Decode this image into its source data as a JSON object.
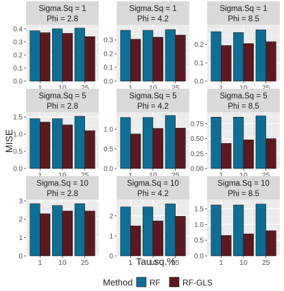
{
  "chart_data": {
    "type": "bar",
    "ylabel": "MISE",
    "xlabel": "Tau.sq.%",
    "categories": [
      "1",
      "10",
      "25"
    ],
    "legend": {
      "title": "Method",
      "position": "bottom",
      "entries": [
        {
          "name": "RF",
          "color": "#0e6e96"
        },
        {
          "name": "RF-GLS",
          "color": "#5b1a20"
        }
      ]
    },
    "panels": [
      {
        "strip1": "Sigma.Sq = 1",
        "strip2": "Phi = 2.8",
        "ylim": [
          0,
          0.42
        ],
        "yticks": [
          "0.0",
          "0.1",
          "0.2",
          "0.3",
          "0.4"
        ],
        "series": [
          {
            "name": "RF",
            "values": [
              0.385,
              0.4,
              0.405
            ]
          },
          {
            "name": "RF-GLS",
            "values": [
              0.37,
              0.365,
              0.34
            ]
          }
        ]
      },
      {
        "strip1": "Sigma.Sq = 1",
        "strip2": "Phi = 4.2",
        "ylim": [
          0,
          0.4
        ],
        "yticks": [
          "0.0",
          "0.1",
          "0.2",
          "0.3"
        ],
        "series": [
          {
            "name": "RF",
            "values": [
              0.37,
              0.37,
              0.375
            ]
          },
          {
            "name": "RF-GLS",
            "values": [
              0.305,
              0.32,
              0.335
            ]
          }
        ]
      },
      {
        "strip1": "Sigma.Sq = 1",
        "strip2": "Phi = 8.5",
        "ylim": [
          0,
          0.3
        ],
        "yticks": [
          "0.0",
          "0.1",
          "0.2"
        ],
        "series": [
          {
            "name": "RF",
            "values": [
              0.27,
              0.265,
              0.28
            ]
          },
          {
            "name": "RF-GLS",
            "values": [
              0.195,
              0.205,
              0.215
            ]
          }
        ]
      },
      {
        "strip1": "Sigma.Sq = 5",
        "strip2": "Phi = 2.8",
        "ylim": [
          0,
          1.6
        ],
        "yticks": [
          "0.0",
          "0.5",
          "1.0",
          "1.5"
        ],
        "series": [
          {
            "name": "RF",
            "values": [
              1.45,
              1.45,
              1.52
            ]
          },
          {
            "name": "RF-GLS",
            "values": [
              1.35,
              1.27,
              1.1
            ]
          }
        ]
      },
      {
        "strip1": "Sigma.Sq = 5",
        "strip2": "Phi = 4.2",
        "ylim": [
          0,
          1.4
        ],
        "yticks": [
          "0.0",
          "0.5",
          "1.0"
        ],
        "series": [
          {
            "name": "RF",
            "values": [
              1.3,
              1.3,
              1.35
            ]
          },
          {
            "name": "RF-GLS",
            "values": [
              0.88,
              1.02,
              1.03
            ]
          }
        ]
      },
      {
        "strip1": "Sigma.Sq = 5",
        "strip2": "Phi = 8.5",
        "ylim": [
          0,
          0.92
        ],
        "yticks": [
          "0.00",
          "0.25",
          "0.50",
          "0.75"
        ],
        "series": [
          {
            "name": "RF",
            "values": [
              0.86,
              0.86,
              0.88
            ]
          },
          {
            "name": "RF-GLS",
            "values": [
              0.42,
              0.48,
              0.5
            ]
          }
        ]
      },
      {
        "strip1": "Sigma.Sq = 10",
        "strip2": "Phi = 2.8",
        "ylim": [
          0,
          3.0
        ],
        "yticks": [
          "0",
          "1",
          "2",
          "3"
        ],
        "series": [
          {
            "name": "RF",
            "values": [
              2.85,
              2.75,
              2.85
            ]
          },
          {
            "name": "RF-GLS",
            "values": [
              2.3,
              2.45,
              2.45
            ]
          }
        ]
      },
      {
        "strip1": "Sigma.Sq = 10",
        "strip2": "Phi = 4.2",
        "ylim": [
          0,
          2.75
        ],
        "yticks": [
          "0",
          "1",
          "2"
        ],
        "series": [
          {
            "name": "RF",
            "values": [
              2.45,
              2.45,
              2.6
            ]
          },
          {
            "name": "RF-GLS",
            "values": [
              1.5,
              1.75,
              1.98
            ]
          }
        ]
      },
      {
        "strip1": "Sigma.Sq = 10",
        "strip2": "Phi = 8.5",
        "ylim": [
          0,
          1.75
        ],
        "yticks": [
          "0.0",
          "0.5",
          "1.0",
          "1.5"
        ],
        "series": [
          {
            "name": "RF",
            "values": [
              1.62,
              1.62,
              1.65
            ]
          },
          {
            "name": "RF-GLS",
            "values": [
              0.65,
              0.7,
              0.8
            ]
          }
        ]
      }
    ]
  }
}
